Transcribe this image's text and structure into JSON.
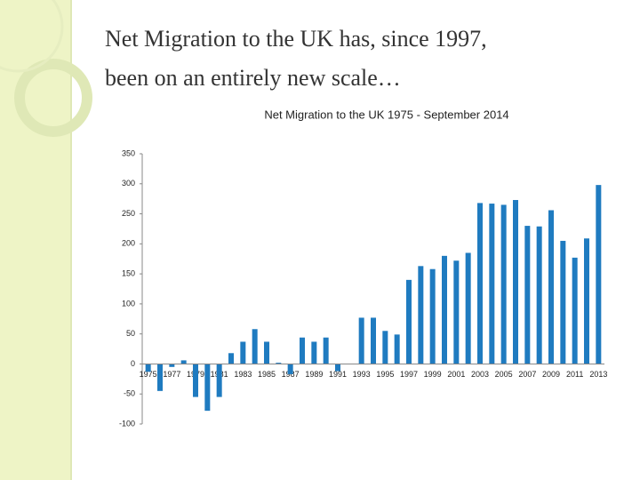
{
  "slide_title": [
    "Net Migration to the UK has, since 1997,",
    "been on an entirely new scale…"
  ],
  "chart_data": {
    "type": "bar",
    "title": "Net Migration to the UK 1975 - September 2014",
    "categories": [
      "1975",
      null,
      "1977",
      null,
      "1979",
      null,
      "1981",
      null,
      "1983",
      null,
      "1985",
      null,
      "1987",
      null,
      "1989",
      null,
      "1991",
      null,
      "1993",
      null,
      "1995",
      null,
      "1997",
      null,
      "1999",
      null,
      "2001",
      null,
      "2003",
      null,
      "2005",
      null,
      "2007",
      null,
      "2009",
      null,
      "2011",
      null,
      "2013"
    ],
    "values": [
      -13,
      -45,
      -5,
      6,
      -55,
      -78,
      -55,
      18,
      37,
      58,
      37,
      2,
      -17,
      44,
      37,
      44,
      -12,
      0,
      77,
      77,
      55,
      49,
      140,
      163,
      158,
      180,
      172,
      185,
      268,
      267,
      265,
      273,
      230,
      229,
      256,
      205,
      177,
      209,
      298
    ],
    "color": "#1f7bc0",
    "ylim": [
      -100,
      350
    ],
    "yticks": [
      -100,
      -50,
      0,
      50,
      100,
      150,
      200,
      250,
      300,
      350
    ]
  }
}
